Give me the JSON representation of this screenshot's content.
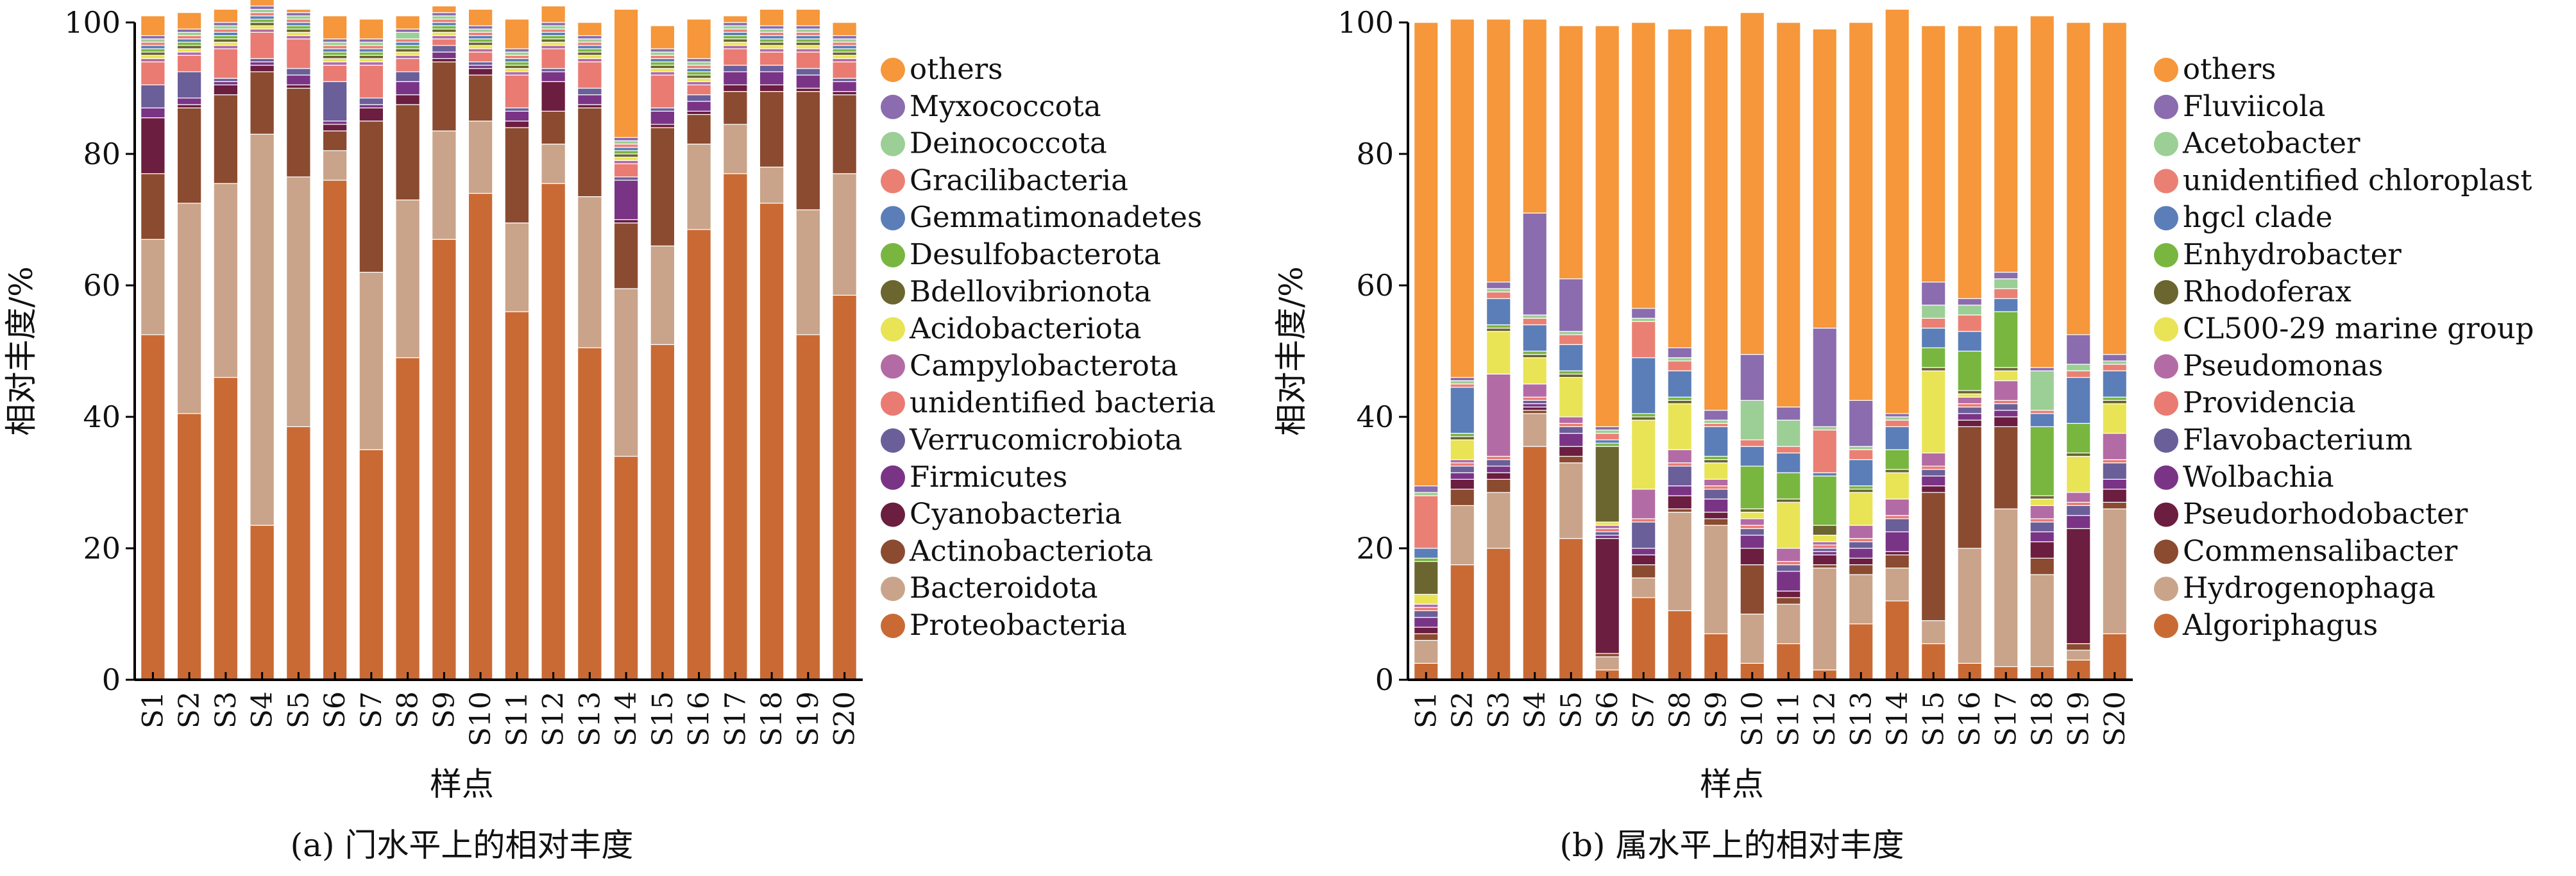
{
  "chart_data": [
    {
      "type": "bar",
      "stacked": true,
      "caption": "(a) 门水平上的相对丰度",
      "xlabel": "样点",
      "ylabel": "相对丰度/%",
      "ylim": [
        0,
        100
      ],
      "yticks": [
        0,
        20,
        40,
        60,
        80,
        100
      ],
      "legend_position": "right",
      "categories": [
        "S1",
        "S2",
        "S3",
        "S4",
        "S5",
        "S6",
        "S7",
        "S8",
        "S9",
        "S10",
        "S11",
        "S12",
        "S13",
        "S14",
        "S15",
        "S16",
        "S17",
        "S18",
        "S19",
        "S20"
      ],
      "series": [
        {
          "name": "Proteobacteria",
          "color": "#c96a35",
          "values": [
            52.5,
            40.5,
            46,
            23.5,
            38.5,
            76,
            35,
            49,
            67,
            74,
            56,
            75.5,
            50.5,
            34,
            51,
            68.5,
            77,
            72.5,
            52.5,
            58.5
          ]
        },
        {
          "name": "Bacteroidota",
          "color": "#c9a48a",
          "values": [
            14.5,
            32,
            29.5,
            59.5,
            38,
            4.5,
            27,
            24,
            16.5,
            11,
            13.5,
            6,
            23,
            25.5,
            15,
            13,
            7.5,
            5.5,
            19,
            18.5
          ]
        },
        {
          "name": "Actinobacteriota",
          "color": "#8b4b30",
          "values": [
            10,
            14.5,
            13.5,
            9.5,
            13.5,
            3,
            23,
            14.5,
            10.5,
            7,
            14.5,
            5,
            13.5,
            10,
            18,
            4.5,
            5,
            11.5,
            18,
            12
          ]
        },
        {
          "name": "Cyanobacteria",
          "color": "#6b1e3f",
          "values": [
            8.5,
            0.5,
            1.5,
            1,
            0.5,
            1,
            2,
            1.5,
            0.5,
            1,
            1,
            4.5,
            0.5,
            0.5,
            0.5,
            0.5,
            1,
            1,
            0.5,
            0.5
          ]
        },
        {
          "name": "Firmicutes",
          "color": "#7a3486",
          "values": [
            1.5,
            1,
            0.5,
            0.5,
            1.5,
            0.5,
            0.5,
            2,
            1,
            0.5,
            1.5,
            1.5,
            1.5,
            6,
            2,
            1.5,
            2,
            2,
            2,
            1.5
          ]
        },
        {
          "name": "Verrucomicrobiota",
          "color": "#6a5f98",
          "values": [
            3.5,
            4,
            0.5,
            0.5,
            1,
            6,
            1,
            1.5,
            1,
            0.5,
            0.5,
            0.5,
            1,
            0.5,
            0.5,
            1,
            1,
            1,
            1,
            0.5
          ]
        },
        {
          "name": "unidentified bacteria",
          "color": "#ea7b73",
          "values": [
            3.5,
            2.5,
            4.5,
            4,
            4.5,
            2.5,
            5,
            2,
            1,
            1.5,
            5,
            3,
            4,
            2,
            5,
            1.5,
            2.5,
            2,
            2.5,
            2.5
          ]
        },
        {
          "name": "Campylobacterota",
          "color": "#b36ba5",
          "values": [
            0.5,
            0.5,
            0.5,
            0.5,
            0.5,
            0.5,
            0.5,
            0.5,
            0.5,
            0.5,
            0.5,
            0.5,
            0.5,
            0.5,
            0.5,
            0.5,
            0.5,
            0.5,
            0.5,
            0.5
          ]
        },
        {
          "name": "Acidobacteriota",
          "color": "#e8e455",
          "values": [
            0.5,
            0.5,
            0.5,
            0.5,
            0.5,
            0.5,
            0.5,
            0.5,
            0.5,
            0.5,
            0.5,
            0.5,
            0.5,
            0.5,
            0.5,
            0.5,
            0.5,
            0.5,
            0.5,
            0.5
          ]
        },
        {
          "name": "Bdellovibrionota",
          "color": "#6b6530",
          "values": [
            0.5,
            0.5,
            0.5,
            0.5,
            0.5,
            0.5,
            0.5,
            0.5,
            0.5,
            0.5,
            0.5,
            0.5,
            0.5,
            0.5,
            0.5,
            0.5,
            0.5,
            0.5,
            0.5,
            0.5
          ]
        },
        {
          "name": "Desulfobacterota",
          "color": "#79b640",
          "values": [
            0.5,
            0.5,
            0.5,
            0.5,
            0.5,
            0.5,
            0.5,
            0.5,
            0.5,
            0.5,
            0.5,
            0.5,
            0.5,
            0.5,
            0.5,
            0.5,
            0.5,
            0.5,
            0.5,
            0.5
          ]
        },
        {
          "name": "Gemmatimonadetes",
          "color": "#5b7eb8",
          "values": [
            0.5,
            0.5,
            0.5,
            0.5,
            0.5,
            0.5,
            0.5,
            0.5,
            0.5,
            0.5,
            0.5,
            0.5,
            0.5,
            0.5,
            0.5,
            0.5,
            0.5,
            0.5,
            0.5,
            0.5
          ]
        },
        {
          "name": "Gracilibacteria",
          "color": "#ea8074",
          "values": [
            0.5,
            0.5,
            0.5,
            0.5,
            0.5,
            0.5,
            0.5,
            0.5,
            0.5,
            0.5,
            0.5,
            0.5,
            0.5,
            0.5,
            0.5,
            0.5,
            0.5,
            0.5,
            0.5,
            0.5
          ]
        },
        {
          "name": "Deinococcota",
          "color": "#9ccf95",
          "values": [
            0.5,
            0.5,
            0.5,
            0.5,
            0.5,
            0.5,
            0.5,
            1,
            0.5,
            0.5,
            0.5,
            0.5,
            0.5,
            0.5,
            0.5,
            0.5,
            0.5,
            0.5,
            0.5,
            0.5
          ]
        },
        {
          "name": "Myxococcota",
          "color": "#8b6cae",
          "values": [
            0.5,
            0.5,
            0.5,
            0.5,
            0.5,
            0.5,
            0.5,
            0.5,
            0.5,
            0.5,
            0.5,
            0.5,
            0.5,
            0.5,
            0.5,
            0.5,
            0.5,
            0.5,
            0.5,
            0.5
          ]
        },
        {
          "name": "others",
          "color": "#f5973a",
          "values": [
            3,
            2.5,
            2,
            1,
            0.5,
            3.5,
            3,
            2,
            1,
            2.5,
            4.5,
            2.5,
            2,
            19.5,
            3.5,
            6,
            1,
            2.5,
            2.5,
            2
          ]
        }
      ]
    },
    {
      "type": "bar",
      "stacked": true,
      "caption": "(b) 属水平上的相对丰度",
      "xlabel": "样点",
      "ylabel": "相对丰度/%",
      "ylim": [
        0,
        100
      ],
      "yticks": [
        0,
        20,
        40,
        60,
        80,
        100
      ],
      "legend_position": "right",
      "categories": [
        "S1",
        "S2",
        "S3",
        "S4",
        "S5",
        "S6",
        "S7",
        "S8",
        "S9",
        "S10",
        "S11",
        "S12",
        "S13",
        "S14",
        "S15",
        "S16",
        "S17",
        "S18",
        "S19",
        "S20"
      ],
      "series": [
        {
          "name": "Algoriphagus",
          "color": "#c96a35",
          "values": [
            2.5,
            17.5,
            20,
            35.5,
            21.5,
            1.5,
            12.5,
            10.5,
            7,
            2.5,
            5.5,
            1.5,
            8.5,
            12,
            5.5,
            2.5,
            2,
            2,
            3,
            7
          ]
        },
        {
          "name": "Hydrogenophaga",
          "color": "#c9a48a",
          "values": [
            3.5,
            9,
            8.5,
            5,
            11.5,
            2,
            3,
            15,
            16.5,
            7.5,
            6,
            15.5,
            7.5,
            5,
            3.5,
            17.5,
            24,
            14,
            1.5,
            19
          ]
        },
        {
          "name": "Commensalibacter",
          "color": "#8b4b30",
          "values": [
            1,
            2.5,
            2,
            0.5,
            1,
            0.5,
            2,
            0.5,
            1,
            7.5,
            1,
            0.5,
            1.5,
            2,
            19.5,
            18.5,
            12.5,
            2.5,
            1,
            1
          ]
        },
        {
          "name": "Pseudorhodobacter",
          "color": "#6b1e3f",
          "values": [
            1,
            1.5,
            1,
            0.5,
            1.5,
            17.5,
            1.5,
            2,
            1,
            2.5,
            1,
            1.5,
            1,
            0.5,
            1,
            1,
            1.5,
            2.5,
            17.5,
            2
          ]
        },
        {
          "name": "Wolbachia",
          "color": "#7a3486",
          "values": [
            1.5,
            1,
            1,
            0.5,
            2,
            0.5,
            1,
            1.5,
            2,
            2,
            3,
            0.5,
            1.5,
            3,
            1.5,
            1,
            1,
            1.5,
            2,
            1.5
          ]
        },
        {
          "name": "Flavobacterium",
          "color": "#6a5f98",
          "values": [
            1,
            1,
            1,
            0.5,
            1,
            0.5,
            4,
            3,
            1.5,
            1,
            1,
            0.5,
            1,
            2,
            1,
            1,
            1,
            1.5,
            1.5,
            2.5
          ]
        },
        {
          "name": "Providencia",
          "color": "#ea7b73",
          "values": [
            0.5,
            0.5,
            0.5,
            0.5,
            0.5,
            0.5,
            0.5,
            0.5,
            0.5,
            0.5,
            0.5,
            0.5,
            0.5,
            0.5,
            0.5,
            0.5,
            0.5,
            0.5,
            0.5,
            0.5
          ]
        },
        {
          "name": "Pseudomonas",
          "color": "#b36ba5",
          "values": [
            0.5,
            0.5,
            12.5,
            2,
            1,
            0.5,
            4.5,
            2,
            1,
            1,
            2,
            0.5,
            2,
            2.5,
            2,
            1,
            3,
            2,
            1.5,
            4
          ]
        },
        {
          "name": "CL500-29 marine group",
          "color": "#e8e455",
          "values": [
            1.5,
            3,
            6.5,
            4,
            6,
            0.5,
            10.5,
            7,
            2.5,
            1,
            7,
            1,
            5,
            4,
            12.5,
            0.5,
            1.5,
            1,
            5.5,
            4.5
          ]
        },
        {
          "name": "Rhodoferax",
          "color": "#6b6530",
          "values": [
            5,
            0.5,
            0.5,
            0.5,
            0.5,
            11.5,
            0.5,
            0.5,
            0.5,
            0.5,
            0.5,
            1.5,
            0.5,
            0.5,
            0.5,
            0.5,
            0.5,
            0.5,
            0.5,
            0.5
          ]
        },
        {
          "name": "Enhydrobacter",
          "color": "#79b640",
          "values": [
            0.5,
            0.5,
            0.5,
            0.5,
            0.5,
            0.5,
            0.5,
            0.5,
            0.5,
            6.5,
            4,
            7.5,
            0.5,
            3,
            3,
            6,
            8.5,
            10.5,
            4.5,
            0.5
          ]
        },
        {
          "name": "hgcl clade",
          "color": "#5b7eb8",
          "values": [
            1.5,
            7,
            4,
            4,
            4,
            0.5,
            8.5,
            4,
            4.5,
            3,
            3,
            0.5,
            4,
            3.5,
            3,
            3,
            2,
            2,
            7,
            4
          ]
        },
        {
          "name": "unidentified chloroplast",
          "color": "#ea8074",
          "values": [
            8,
            0.5,
            1,
            1,
            1.5,
            1,
            5.5,
            1.5,
            0.5,
            1,
            1,
            6.5,
            1.5,
            1,
            1.5,
            2.5,
            1.5,
            0.5,
            1,
            1
          ]
        },
        {
          "name": "Acetobacter",
          "color": "#9ccf95",
          "values": [
            0.5,
            0.5,
            0.5,
            0.5,
            0.5,
            0.5,
            0.5,
            0.5,
            0.5,
            6,
            4,
            0.5,
            0.5,
            0.5,
            2,
            1.5,
            1.5,
            6,
            1,
            0.5
          ]
        },
        {
          "name": "Fluviicola",
          "color": "#8b6cae",
          "values": [
            1,
            0.5,
            1,
            15.5,
            8,
            0.5,
            1.5,
            1.5,
            1.5,
            7,
            2,
            15,
            7,
            0.5,
            3.5,
            1,
            1,
            0.5,
            4.5,
            1
          ]
        },
        {
          "name": "others",
          "color": "#f5973a",
          "values": [
            70.5,
            54.5,
            40,
            29.5,
            38.5,
            61,
            43.5,
            48.5,
            58.5,
            52,
            58.5,
            45.5,
            57.5,
            61.5,
            39,
            41.5,
            37.5,
            53.5,
            47.5,
            50.5
          ]
        }
      ]
    }
  ]
}
